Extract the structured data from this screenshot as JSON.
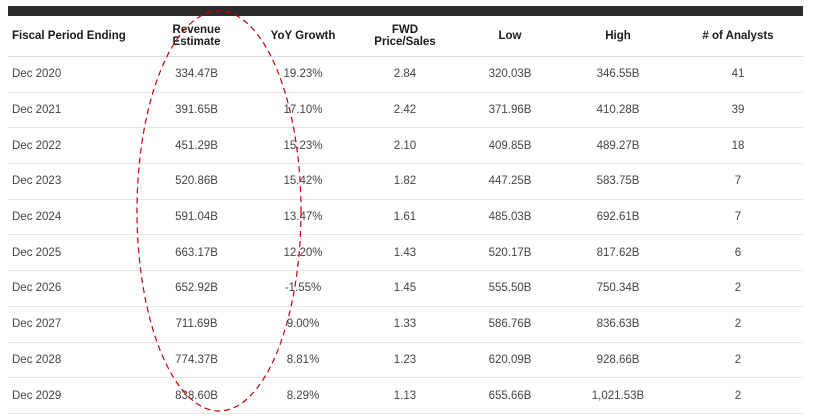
{
  "table": {
    "headers": {
      "period": "Fiscal Period Ending",
      "revenue_line1": "Revenue",
      "revenue_line2": "Estimate",
      "yoy": "YoY Growth",
      "fwd_line1": "FWD",
      "fwd_line2": "Price/Sales",
      "low": "Low",
      "high": "High",
      "analysts": "# of Analysts"
    },
    "rows": [
      {
        "period": "Dec 2020",
        "revenue": "334.47B",
        "yoy": "19.23%",
        "fwd": "2.84",
        "low": "320.03B",
        "high": "346.55B",
        "analysts": "41"
      },
      {
        "period": "Dec 2021",
        "revenue": "391.65B",
        "yoy": "17.10%",
        "fwd": "2.42",
        "low": "371.96B",
        "high": "410.28B",
        "analysts": "39"
      },
      {
        "period": "Dec 2022",
        "revenue": "451.29B",
        "yoy": "15.23%",
        "fwd": "2.10",
        "low": "409.85B",
        "high": "489.27B",
        "analysts": "18"
      },
      {
        "period": "Dec 2023",
        "revenue": "520.86B",
        "yoy": "15.42%",
        "fwd": "1.82",
        "low": "447.25B",
        "high": "583.75B",
        "analysts": "7"
      },
      {
        "period": "Dec 2024",
        "revenue": "591.04B",
        "yoy": "13.47%",
        "fwd": "1.61",
        "low": "485.03B",
        "high": "692.61B",
        "analysts": "7"
      },
      {
        "period": "Dec 2025",
        "revenue": "663.17B",
        "yoy": "12.20%",
        "fwd": "1.43",
        "low": "520.17B",
        "high": "817.62B",
        "analysts": "6"
      },
      {
        "period": "Dec 2026",
        "revenue": "652.92B",
        "yoy": "-1.55%",
        "fwd": "1.45",
        "low": "555.50B",
        "high": "750.34B",
        "analysts": "2"
      },
      {
        "period": "Dec 2027",
        "revenue": "711.69B",
        "yoy": "9.00%",
        "fwd": "1.33",
        "low": "586.76B",
        "high": "836.63B",
        "analysts": "2"
      },
      {
        "period": "Dec 2028",
        "revenue": "774.37B",
        "yoy": "8.81%",
        "fwd": "1.23",
        "low": "620.09B",
        "high": "928.66B",
        "analysts": "2"
      },
      {
        "period": "Dec 2029",
        "revenue": "838.60B",
        "yoy": "8.29%",
        "fwd": "1.13",
        "low": "655.66B",
        "high": "1,021.53B",
        "analysts": "2"
      }
    ]
  },
  "colors": {
    "top_bar": "#2b2b2b",
    "highlight": "#cc0000"
  }
}
